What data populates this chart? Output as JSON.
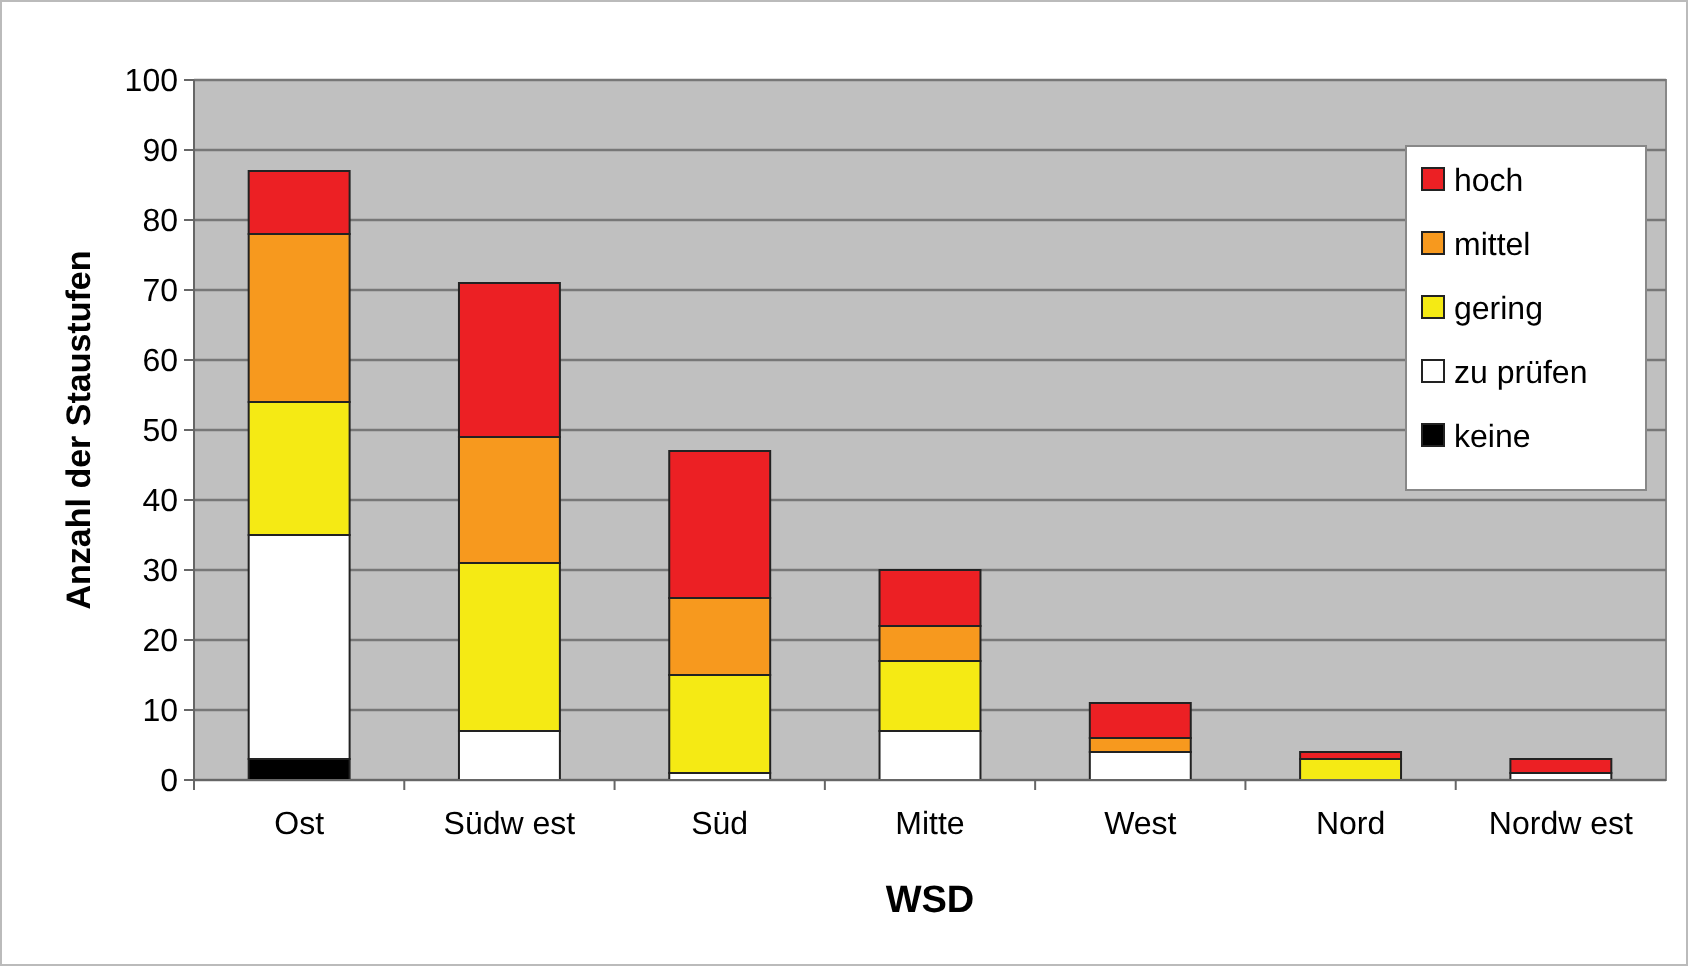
{
  "chart_data": {
    "type": "bar",
    "stacked": true,
    "xlabel": "WSD",
    "ylabel": "Anzahl der Staustufen",
    "categories": [
      "Ost",
      "Südw est",
      "Süd",
      "Mitte",
      "West",
      "Nord",
      "Nordw est"
    ],
    "series": [
      {
        "name": "keine",
        "color": "#000000",
        "values": [
          3,
          0,
          0,
          0,
          0,
          0,
          0
        ]
      },
      {
        "name": "zu prüfen",
        "color": "#ffffff",
        "values": [
          32,
          7,
          1,
          7,
          4,
          0,
          1
        ]
      },
      {
        "name": "gering",
        "color": "#f5ea14",
        "values": [
          19,
          24,
          14,
          10,
          0,
          3,
          0
        ]
      },
      {
        "name": "mittel",
        "color": "#f7991e",
        "values": [
          24,
          18,
          11,
          5,
          2,
          0,
          0
        ]
      },
      {
        "name": "hoch",
        "color": "#ec2024",
        "values": [
          9,
          22,
          21,
          8,
          5,
          1,
          2
        ]
      }
    ],
    "ylim": [
      0,
      100
    ],
    "yticks": [
      0,
      10,
      20,
      30,
      40,
      50,
      60,
      70,
      80,
      90,
      100
    ],
    "grid": "y",
    "legend": "top right"
  }
}
